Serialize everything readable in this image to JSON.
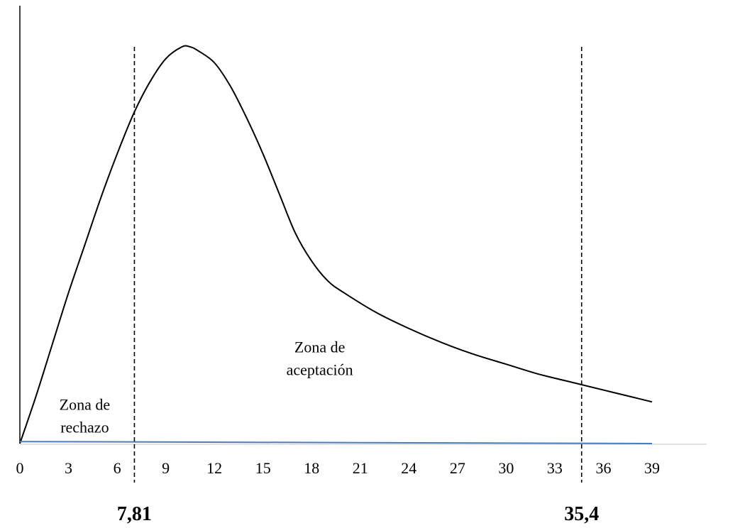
{
  "chart_data": {
    "type": "line",
    "title": "",
    "xlabel": "",
    "ylabel": "",
    "xlim": [
      0,
      41.5
    ],
    "ylim": [
      0,
      1
    ],
    "grid": false,
    "legend": "none",
    "x_ticks": [
      0,
      3,
      6,
      9,
      12,
      15,
      18,
      21,
      24,
      27,
      30,
      33,
      36,
      39
    ],
    "series": [
      {
        "color": "#000000",
        "x": [
          0,
          1,
          2,
          3,
          4,
          5,
          6,
          7,
          8,
          9,
          10,
          10.5,
          11,
          12,
          13,
          14,
          15,
          16,
          17,
          18,
          19,
          20,
          22,
          24,
          26,
          28,
          30,
          32,
          34,
          36,
          38,
          39
        ],
        "y": [
          0,
          0.12,
          0.25,
          0.38,
          0.5,
          0.62,
          0.73,
          0.83,
          0.91,
          0.97,
          1.0,
          1.0,
          0.99,
          0.96,
          0.9,
          0.82,
          0.73,
          0.63,
          0.53,
          0.46,
          0.41,
          0.38,
          0.33,
          0.29,
          0.255,
          0.225,
          0.2,
          0.175,
          0.155,
          0.135,
          0.115,
          0.105
        ]
      },
      {
        "color": "#4a7ebb",
        "x": [
          0,
          39
        ],
        "y": [
          0.005,
          0
        ]
      }
    ],
    "critical_values": [
      {
        "x": 7.81,
        "label": "7,81"
      },
      {
        "x": 35.4,
        "label": "35,4"
      }
    ],
    "annotations": [
      {
        "lines": [
          "Zona de",
          "rechazo"
        ],
        "x": 4,
        "y": 0.085
      },
      {
        "lines": [
          "Zona de",
          "aceptación"
        ],
        "x": 18.5,
        "y": 0.23
      }
    ]
  }
}
